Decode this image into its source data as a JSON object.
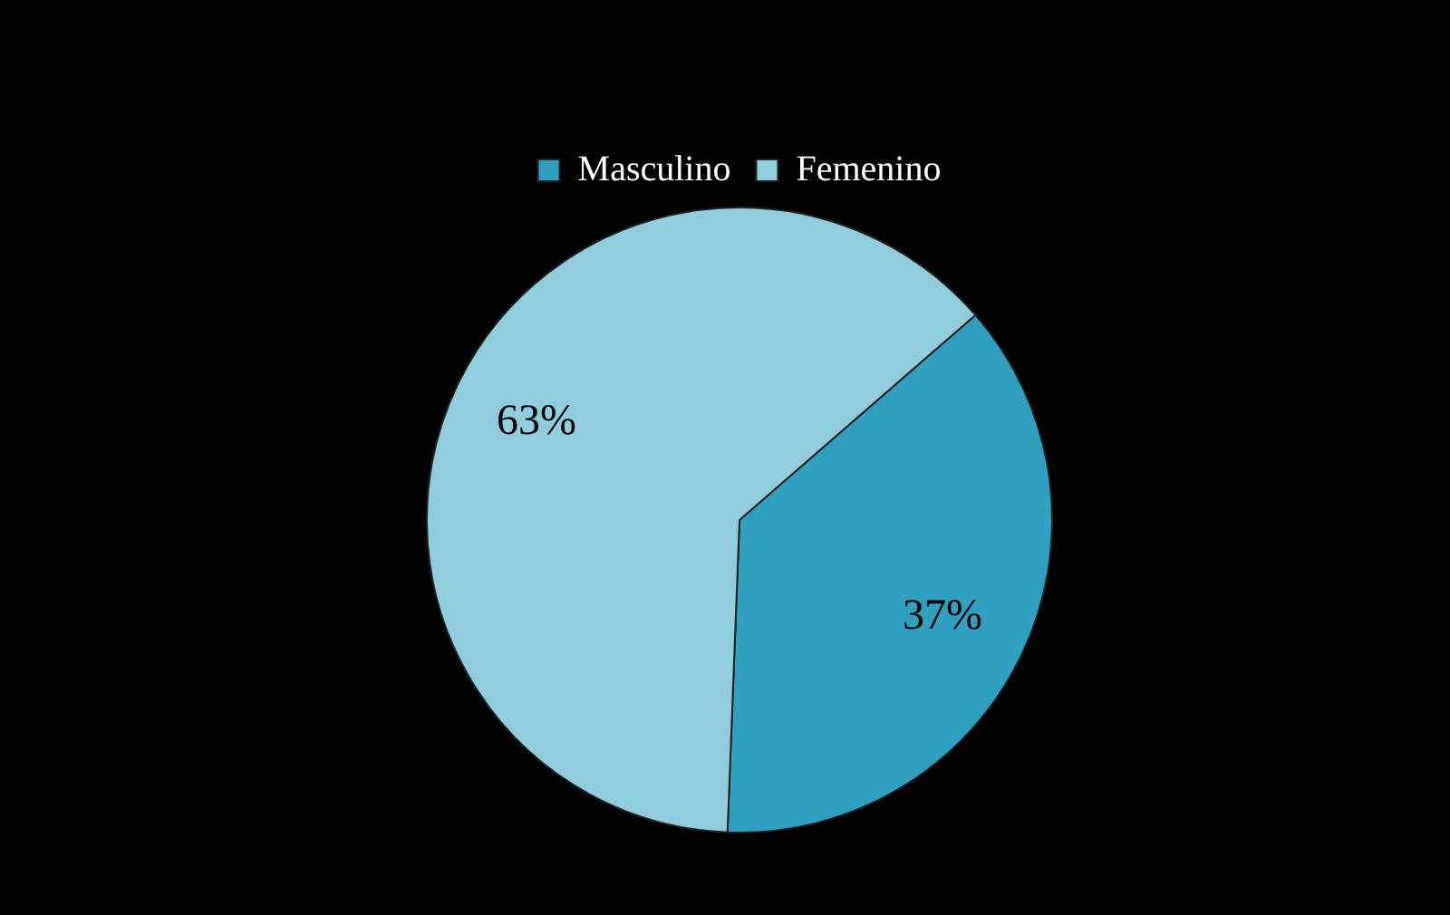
{
  "chart_data": {
    "type": "pie",
    "categories": [
      "Masculino",
      "Femenino"
    ],
    "values": [
      37,
      63
    ],
    "colors": [
      "#31a0c0",
      "#92cddc"
    ],
    "value_labels": [
      "37%",
      "63%"
    ],
    "legend": "top"
  }
}
